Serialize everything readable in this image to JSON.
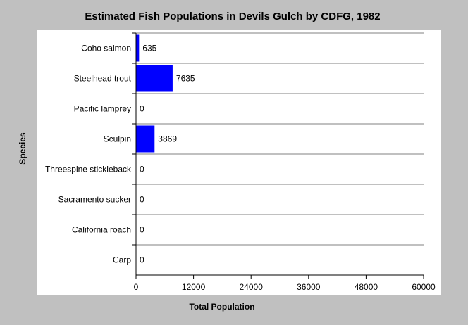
{
  "chart_data": {
    "type": "bar",
    "orientation": "horizontal",
    "title": "Estimated Fish Populations in Devils Gulch by CDFG, 1982",
    "xlabel": "Total Population",
    "ylabel": "Species",
    "categories": [
      "Coho salmon",
      "Steelhead trout",
      "Pacific lamprey",
      "Sculpin",
      "Threespine stickleback",
      "Sacramento sucker",
      "California roach",
      "Carp"
    ],
    "values": [
      635,
      7635,
      0,
      3869,
      0,
      0,
      0,
      0
    ],
    "value_labels": [
      "635",
      "7635",
      "0",
      "3869",
      "0",
      "0",
      "0",
      "0"
    ],
    "xlim": [
      0,
      60000
    ],
    "xticks": [
      0,
      12000,
      24000,
      36000,
      48000,
      60000
    ],
    "xtick_labels": [
      "0",
      "12000",
      "24000",
      "36000",
      "48000",
      "60000"
    ],
    "grid": true,
    "legend": "none",
    "colors": {
      "bar": "#0000ff",
      "page_background": "#c0c0c0",
      "plot_background": "#ffffff",
      "axis": "#000000",
      "gridline": "#808080"
    }
  }
}
